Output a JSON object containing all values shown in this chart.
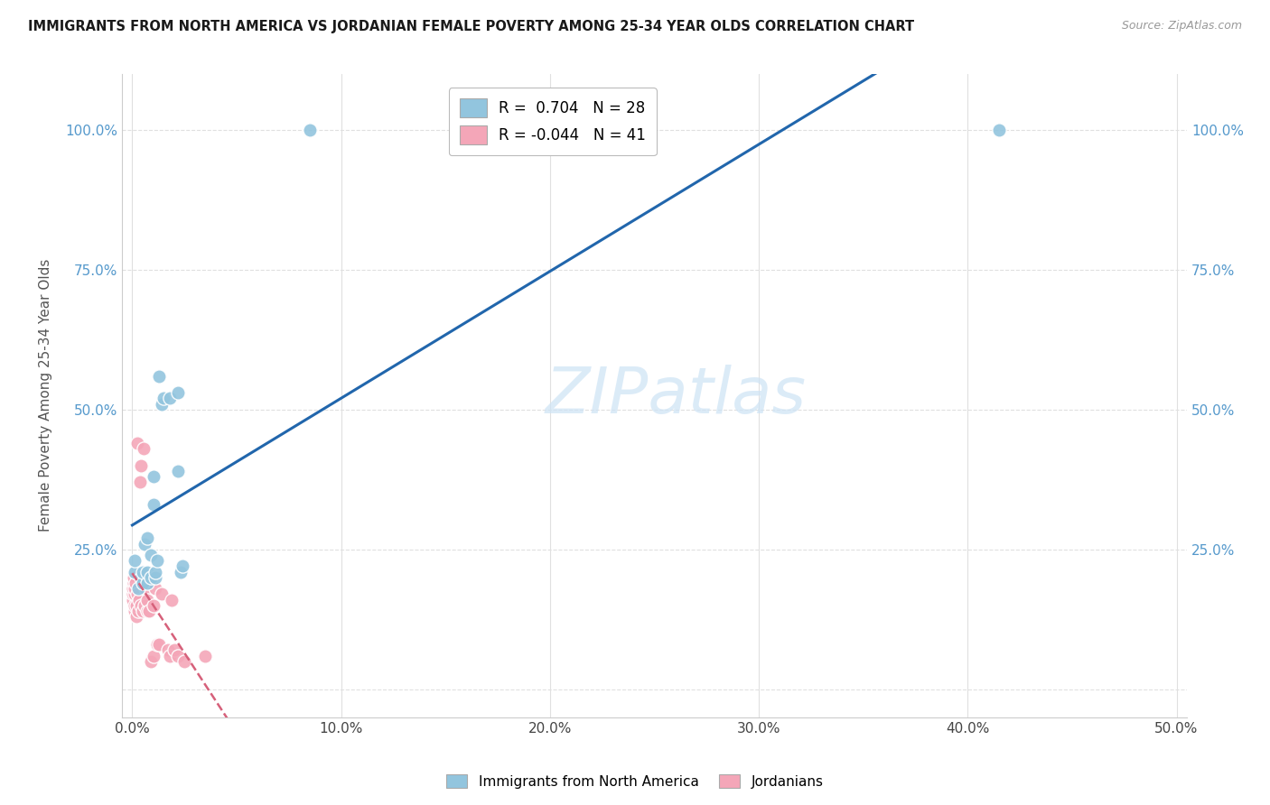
{
  "title": "IMMIGRANTS FROM NORTH AMERICA VS JORDANIAN FEMALE POVERTY AMONG 25-34 YEAR OLDS CORRELATION CHART",
  "source": "Source: ZipAtlas.com",
  "ylabel": "Female Poverty Among 25-34 Year Olds",
  "xlabel": "",
  "r_blue": 0.704,
  "n_blue": 28,
  "r_pink": -0.044,
  "n_pink": 41,
  "blue_color": "#92c5de",
  "pink_color": "#f4a6b8",
  "trendline_blue": "#2166ac",
  "trendline_pink": "#d6607a",
  "watermark_color": "#cde3f5",
  "blue_points_x": [
    0.1,
    0.1,
    0.3,
    0.4,
    0.5,
    0.5,
    0.6,
    0.7,
    0.7,
    0.7,
    0.9,
    0.9,
    1.0,
    1.0,
    1.1,
    1.1,
    1.2,
    1.3,
    1.4,
    1.5,
    1.8,
    2.2,
    2.2,
    2.3,
    2.4,
    8.5,
    19.5,
    41.5
  ],
  "blue_points_y": [
    21,
    23,
    18,
    20,
    19,
    21,
    26,
    19,
    21,
    27,
    20,
    24,
    33,
    38,
    20,
    21,
    23,
    56,
    51,
    52,
    52,
    53,
    39,
    21,
    22,
    100,
    100,
    100
  ],
  "pink_points_x": [
    0.02,
    0.03,
    0.04,
    0.05,
    0.06,
    0.1,
    0.1,
    0.1,
    0.12,
    0.14,
    0.2,
    0.2,
    0.22,
    0.24,
    0.3,
    0.32,
    0.35,
    0.4,
    0.42,
    0.5,
    0.52,
    0.55,
    0.6,
    0.62,
    0.7,
    0.72,
    0.8,
    0.9,
    1.0,
    1.02,
    1.1,
    1.2,
    1.3,
    1.4,
    1.7,
    1.8,
    1.9,
    2.0,
    2.2,
    2.5,
    3.5
  ],
  "pink_points_y": [
    16,
    17,
    18,
    19,
    20,
    14,
    15,
    17,
    18,
    19,
    13,
    15,
    17,
    44,
    14,
    16,
    37,
    15,
    40,
    14,
    20,
    43,
    15,
    18,
    14,
    16,
    14,
    5,
    6,
    15,
    18,
    8,
    8,
    17,
    7,
    6,
    16,
    7,
    6,
    5,
    6
  ],
  "xlim": [
    -0.5,
    50.5
  ],
  "ylim": [
    -5,
    110
  ],
  "xticks": [
    0,
    10,
    20,
    30,
    40,
    50
  ],
  "xtick_labels": [
    "0.0%",
    "10.0%",
    "20.0%",
    "30.0%",
    "40.0%",
    "50.0%"
  ],
  "yticks": [
    0,
    25,
    50,
    75,
    100
  ],
  "ytick_labels_left": [
    "",
    "25.0%",
    "50.0%",
    "75.0%",
    "100.0%"
  ],
  "ytick_labels_right": [
    "",
    "25.0%",
    "50.0%",
    "75.0%",
    "100.0%"
  ],
  "background_color": "#ffffff",
  "grid_color": "#e0e0e0"
}
